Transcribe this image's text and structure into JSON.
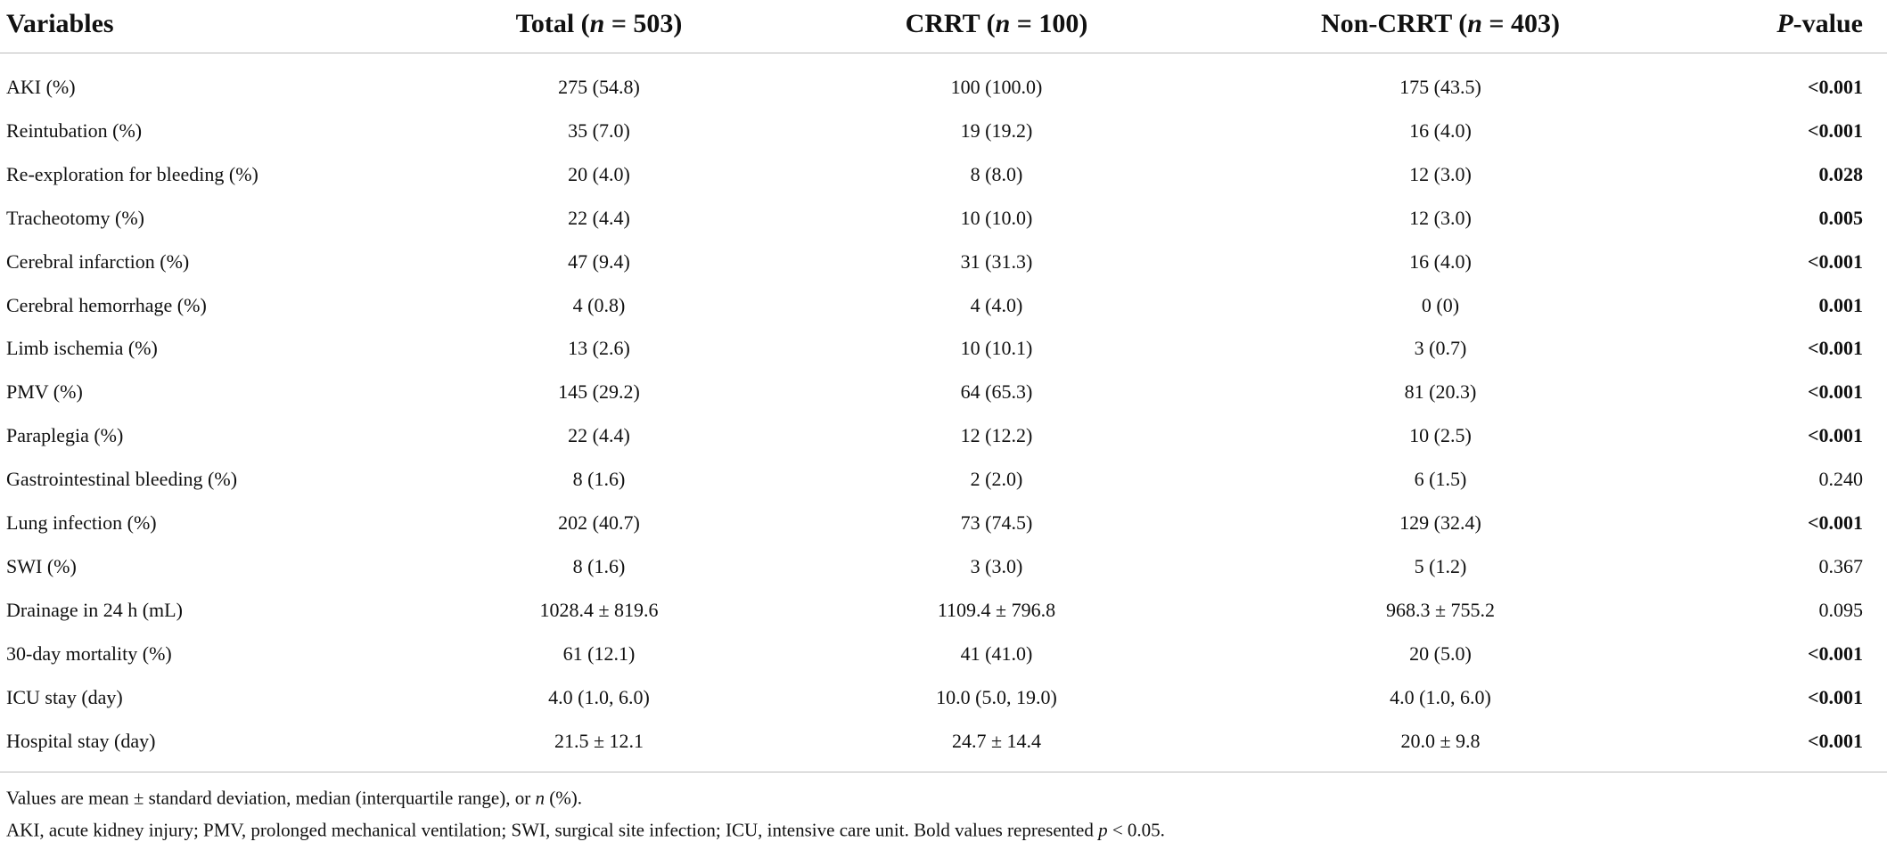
{
  "table": {
    "header": [
      [
        {
          "text": "Variables"
        }
      ],
      [
        {
          "text": "Total ("
        },
        {
          "text": "n",
          "italic": true
        },
        {
          "text": " = 503)"
        }
      ],
      [
        {
          "text": "CRRT ("
        },
        {
          "text": "n",
          "italic": true
        },
        {
          "text": " = 100)"
        }
      ],
      [
        {
          "text": "Non-CRRT ("
        },
        {
          "text": "n",
          "italic": true
        },
        {
          "text": " = 403)"
        }
      ],
      [
        {
          "text": "P",
          "italic": true
        },
        {
          "text": "-value"
        }
      ]
    ],
    "rows": [
      [
        "AKI (%)",
        "275 (54.8)",
        "100 (100.0)",
        "175 (43.5)",
        "<0.001"
      ],
      [
        "Reintubation (%)",
        "35 (7.0)",
        "19 (19.2)",
        "16 (4.0)",
        "<0.001"
      ],
      [
        "Re-exploration for bleeding (%)",
        "20 (4.0)",
        "8 (8.0)",
        "12 (3.0)",
        "0.028"
      ],
      [
        "Tracheotomy (%)",
        "22 (4.4)",
        "10 (10.0)",
        "12 (3.0)",
        "0.005"
      ],
      [
        "Cerebral infarction (%)",
        "47 (9.4)",
        "31 (31.3)",
        "16 (4.0)",
        "<0.001"
      ],
      [
        "Cerebral hemorrhage (%)",
        "4 (0.8)",
        "4 (4.0)",
        "0 (0)",
        "0.001"
      ],
      [
        "Limb ischemia (%)",
        "13 (2.6)",
        "10 (10.1)",
        "3 (0.7)",
        "<0.001"
      ],
      [
        "PMV (%)",
        "145 (29.2)",
        "64 (65.3)",
        "81 (20.3)",
        "<0.001"
      ],
      [
        "Paraplegia (%)",
        "22 (4.4)",
        "12 (12.2)",
        "10 (2.5)",
        "<0.001"
      ],
      [
        "Gastrointestinal bleeding (%)",
        "8 (1.6)",
        "2 (2.0)",
        "6 (1.5)",
        "0.240"
      ],
      [
        "Lung infection (%)",
        "202 (40.7)",
        "73 (74.5)",
        "129 (32.4)",
        "<0.001"
      ],
      [
        "SWI (%)",
        "8 (1.6)",
        "3 (3.0)",
        "5 (1.2)",
        "0.367"
      ],
      [
        "Drainage in 24 h (mL)",
        "1028.4 ± 819.6",
        "1109.4 ± 796.8",
        "968.3 ± 755.2",
        "0.095"
      ],
      [
        "30-day mortality (%)",
        "61 (12.1)",
        "41 (41.0)",
        "20 (5.0)",
        "<0.001"
      ],
      [
        "ICU stay (day)",
        "4.0 (1.0, 6.0)",
        "10.0 (5.0, 19.0)",
        "4.0 (1.0, 6.0)",
        "<0.001"
      ],
      [
        "Hospital stay (day)",
        "21.5 ± 12.1",
        "24.7 ± 14.4",
        "20.0 ± 9.8",
        "<0.001"
      ]
    ],
    "bold_p": [
      true,
      true,
      true,
      true,
      true,
      true,
      true,
      true,
      true,
      false,
      true,
      false,
      false,
      true,
      true,
      true
    ]
  },
  "footnotes": [
    [
      {
        "text": "Values are mean ± standard deviation, median (interquartile range), or "
      },
      {
        "text": "n",
        "italic": true
      },
      {
        "text": " (%)."
      }
    ],
    [
      {
        "text": "AKI, acute kidney injury; PMV, prolonged mechanical ventilation; SWI, surgical site infection; ICU, intensive care unit. Bold values represented "
      },
      {
        "text": "p",
        "italic": true
      },
      {
        "text": " < 0.05."
      }
    ]
  ]
}
